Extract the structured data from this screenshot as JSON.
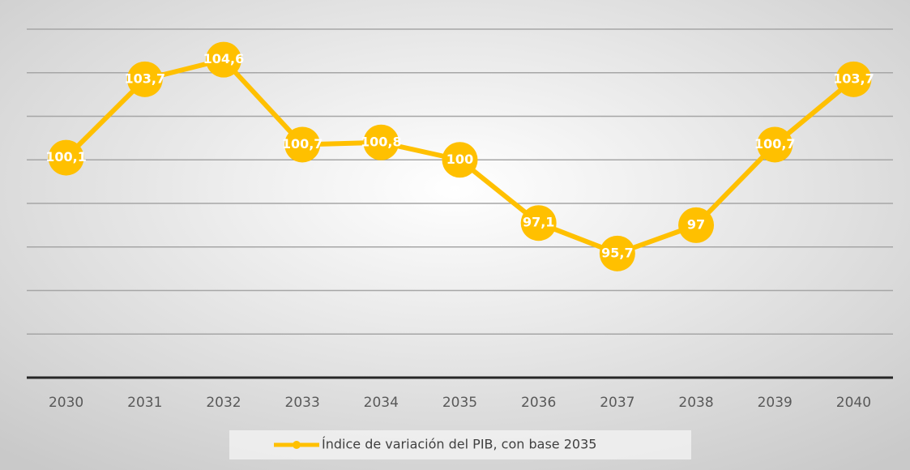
{
  "chart_data": {
    "type": "line",
    "categories": [
      "2030",
      "2031",
      "2032",
      "2033",
      "2034",
      "2035",
      "2036",
      "2037",
      "2038",
      "2039",
      "2040"
    ],
    "series": [
      {
        "name": "Índice de variación del PIB, con base 2035",
        "color": "#ffc000",
        "values": [
          100.1,
          103.7,
          104.6,
          100.7,
          100.8,
          100,
          97.1,
          95.7,
          97,
          100.7,
          103.7
        ],
        "value_labels": [
          "100,1",
          "103,7",
          "104,6",
          "100,7",
          "100,8",
          "100",
          "97,1",
          "95,7",
          "97",
          "100,7",
          "103,7"
        ]
      }
    ],
    "ylim": [
      90,
      106
    ],
    "yticks": [
      90,
      92,
      94,
      96,
      98,
      100,
      102,
      104,
      106
    ],
    "grid": true,
    "legend": "bottom"
  }
}
